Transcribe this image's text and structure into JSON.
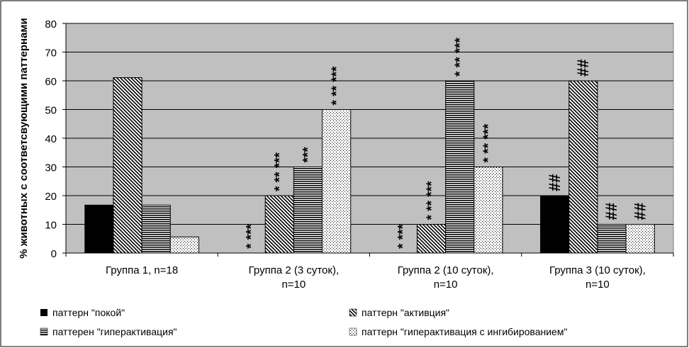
{
  "chart_data": {
    "type": "bar",
    "ylabel": "% животных с соответсвующими паттернами",
    "ylim": [
      0,
      80
    ],
    "yticks": [
      0,
      10,
      20,
      30,
      40,
      50,
      60,
      70,
      80
    ],
    "grid": true,
    "plot_background": "#c0c0c0",
    "legend_position": "bottom",
    "categories": [
      [
        "Группа 1, n=18"
      ],
      [
        "Группа 2  (3 суток),",
        "n=10"
      ],
      [
        "Группа 2  (10 суток),",
        "n=10"
      ],
      [
        "Группа 3 (10 суток),",
        "n=10"
      ]
    ],
    "series": [
      {
        "name": "паттерн \"покой\"",
        "pattern": "solid-black",
        "values": [
          16.7,
          0,
          0,
          20
        ]
      },
      {
        "name": "паттерн \"активция\"",
        "pattern": "diagonal-hatch",
        "values": [
          61.1,
          20,
          10,
          60
        ]
      },
      {
        "name": "паттерен \"гиперактивация\"",
        "pattern": "horizontal-lines",
        "values": [
          16.7,
          30,
          60,
          10
        ]
      },
      {
        "name": "паттерн \"гиперактивация с ингибированием\"",
        "pattern": "dots",
        "values": [
          5.6,
          50,
          30,
          10
        ]
      }
    ],
    "annotations": [
      {
        "category": 1,
        "series": 0,
        "text": "* ***",
        "y": 0
      },
      {
        "category": 1,
        "series": 1,
        "text": "* ** ***",
        "y": 20
      },
      {
        "category": 1,
        "series": 2,
        "text": "***",
        "y": 30
      },
      {
        "category": 1,
        "series": 3,
        "text": "* ** ***",
        "y": 50
      },
      {
        "category": 2,
        "series": 0,
        "text": "* ***",
        "y": 0
      },
      {
        "category": 2,
        "series": 1,
        "text": "* ** ***",
        "y": 10
      },
      {
        "category": 2,
        "series": 2,
        "text": "* ** ***",
        "y": 60
      },
      {
        "category": 2,
        "series": 3,
        "text": "* ** ***",
        "y": 30
      },
      {
        "category": 3,
        "series": 0,
        "text": "##",
        "y": 20
      },
      {
        "category": 3,
        "series": 1,
        "text": "##",
        "y": 60
      },
      {
        "category": 3,
        "series": 2,
        "text": "##",
        "y": 10
      },
      {
        "category": 3,
        "series": 3,
        "text": "##",
        "y": 10
      }
    ]
  }
}
